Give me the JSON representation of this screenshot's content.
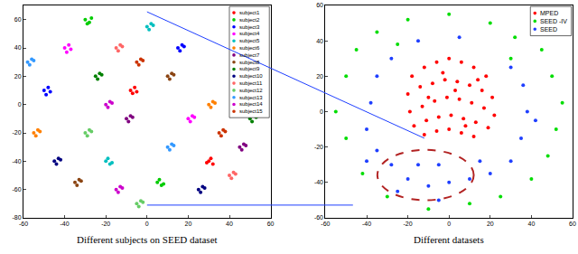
{
  "chart_data": [
    {
      "type": "scatter",
      "xlabel": "Different subjects on SEED dataset",
      "marker": "circle",
      "legend": "upper right",
      "grid": false,
      "xlim": [
        -60,
        60
      ],
      "xticks": [
        -60,
        -40,
        -20,
        0,
        20,
        40,
        60
      ],
      "ylim": [
        -80,
        70
      ],
      "yticks": [
        -80,
        -60,
        -40,
        -20,
        0,
        20,
        40,
        60
      ],
      "series": [
        {
          "name": "subject1",
          "color": "#ff0000",
          "x": [
            -8,
            -6,
            -5,
            -7,
            30,
            32,
            31,
            29
          ],
          "y": [
            10,
            12,
            9,
            8,
            -40,
            -42,
            -38,
            -41
          ]
        },
        {
          "name": "subject2",
          "color": "#00cc00",
          "x": [
            -30,
            -28,
            -27,
            -29,
            5,
            7,
            6,
            8
          ],
          "y": [
            60,
            58,
            61,
            57,
            -55,
            -57,
            -53,
            -56
          ]
        },
        {
          "name": "subject3",
          "color": "#0000ff",
          "x": [
            -50,
            -48,
            -47,
            -49,
            15,
            17,
            16,
            18
          ],
          "y": [
            10,
            12,
            9,
            7,
            40,
            42,
            38,
            41
          ]
        },
        {
          "name": "subject4",
          "color": "#ff00ff",
          "x": [
            -40,
            -38,
            -37,
            -39,
            20,
            22,
            21,
            23
          ],
          "y": [
            40,
            42,
            39,
            37,
            -10,
            -8,
            -12,
            -9
          ]
        },
        {
          "name": "subject5",
          "color": "#00bfbf",
          "x": [
            -20,
            -18,
            -19,
            -17,
            0,
            2,
            1,
            3
          ],
          "y": [
            -40,
            -42,
            -38,
            -41,
            55,
            57,
            53,
            56
          ]
        },
        {
          "name": "subject6",
          "color": "#ff8000",
          "x": [
            -55,
            -53,
            -54,
            -52,
            30,
            32,
            31,
            33
          ],
          "y": [
            -20,
            -18,
            -22,
            -19,
            0,
            2,
            -2,
            1
          ]
        },
        {
          "name": "subject7",
          "color": "#800080",
          "x": [
            -10,
            -8,
            -9,
            -7,
            45,
            47,
            46,
            48
          ],
          "y": [
            -10,
            -8,
            -12,
            -9,
            -30,
            -28,
            -32,
            -29
          ]
        },
        {
          "name": "subject8",
          "color": "#8b4513",
          "x": [
            -35,
            -33,
            -34,
            -32,
            10,
            12,
            11,
            13
          ],
          "y": [
            -55,
            -53,
            -57,
            -54,
            20,
            22,
            18,
            21
          ]
        },
        {
          "name": "subject9",
          "color": "#008000",
          "x": [
            -25,
            -23,
            -24,
            -22,
            50,
            52,
            51,
            53
          ],
          "y": [
            20,
            22,
            18,
            21,
            -10,
            -8,
            -12,
            -9
          ]
        },
        {
          "name": "subject10",
          "color": "#000080",
          "x": [
            -45,
            -43,
            -44,
            -42,
            25,
            27,
            26,
            28
          ],
          "y": [
            -40,
            -38,
            -42,
            -39,
            -60,
            -58,
            -62,
            -59
          ]
        },
        {
          "name": "subject11",
          "color": "#ff6666",
          "x": [
            -15,
            -13,
            -14,
            -12,
            40,
            42,
            41,
            43
          ],
          "y": [
            40,
            42,
            38,
            41,
            -50,
            -48,
            -52,
            -49
          ]
        },
        {
          "name": "subject12",
          "color": "#66cc66",
          "x": [
            -30,
            -28,
            -29,
            -27,
            -5,
            -3,
            -4,
            -2
          ],
          "y": [
            -20,
            -18,
            -22,
            -19,
            -70,
            -68,
            -72,
            -69
          ]
        },
        {
          "name": "subject13",
          "color": "#3399ff",
          "x": [
            -58,
            -56,
            -57,
            -55,
            10,
            12,
            11,
            13
          ],
          "y": [
            30,
            32,
            28,
            31,
            -30,
            -28,
            -32,
            -29
          ]
        },
        {
          "name": "subject14",
          "color": "#cc00cc",
          "x": [
            -20,
            -18,
            -19,
            -17,
            -15,
            -13,
            -14,
            -12
          ],
          "y": [
            0,
            2,
            -2,
            1,
            -60,
            -58,
            -62,
            -59
          ]
        },
        {
          "name": "subject15",
          "color": "#cc3300",
          "x": [
            -5,
            -3,
            -4,
            -2,
            35,
            37,
            36,
            38
          ],
          "y": [
            30,
            32,
            28,
            31,
            -20,
            -18,
            -22,
            -19
          ]
        }
      ]
    },
    {
      "type": "scatter",
      "xlabel": "Different datasets",
      "marker": "circle",
      "legend": "upper right",
      "grid": false,
      "xlim": [
        -60,
        60
      ],
      "xticks": [
        -60,
        -40,
        -20,
        0,
        20,
        40,
        60
      ],
      "ylim": [
        -60,
        60
      ],
      "yticks": [
        -60,
        -40,
        -20,
        0,
        20,
        40,
        60
      ],
      "series": [
        {
          "name": "MPED",
          "color": "#ff0000",
          "x": [
            -18,
            -12,
            -6,
            0,
            6,
            12,
            18,
            -20,
            -14,
            -8,
            -2,
            4,
            10,
            16,
            21,
            -19,
            -13,
            -7,
            -1,
            5,
            11,
            17,
            22,
            -17,
            -11,
            -5,
            1,
            7,
            13,
            19,
            -12,
            -6,
            0,
            6,
            12,
            -3,
            3,
            -10,
            8,
            14
          ],
          "y": [
            20,
            25,
            28,
            30,
            28,
            25,
            20,
            10,
            14,
            16,
            18,
            17,
            15,
            12,
            8,
            0,
            3,
            6,
            8,
            7,
            5,
            2,
            -2,
            -8,
            -5,
            -3,
            -2,
            -4,
            -6,
            -9,
            -13,
            -11,
            -10,
            -12,
            -14,
            22,
            12,
            8,
            -8,
            18
          ]
        },
        {
          "name": "SEED -IV",
          "color": "#00dd00",
          "x": [
            -50,
            -45,
            -35,
            -20,
            0,
            20,
            32,
            50,
            55,
            52,
            48,
            40,
            -55,
            -50,
            -30,
            -10,
            10,
            25,
            -42,
            30,
            -25,
            45
          ],
          "y": [
            20,
            35,
            45,
            52,
            55,
            50,
            42,
            20,
            5,
            -10,
            -25,
            -38,
            0,
            -15,
            -48,
            -55,
            -52,
            -48,
            -35,
            30,
            38,
            35
          ]
        },
        {
          "name": "SEED",
          "color": "#1f3fff",
          "x": [
            -35,
            -38,
            -40,
            -35,
            -28,
            -20,
            -10,
            0,
            10,
            20,
            30,
            35,
            38,
            36,
            30,
            -28,
            -15,
            5,
            -5,
            -15,
            15,
            -25,
            -5,
            -40,
            42
          ],
          "y": [
            20,
            5,
            -10,
            -22,
            -30,
            -38,
            -42,
            -40,
            -38,
            -35,
            -28,
            -15,
            0,
            15,
            25,
            30,
            40,
            42,
            -30,
            -30,
            -28,
            -45,
            -50,
            -28,
            -5
          ]
        }
      ]
    }
  ]
}
